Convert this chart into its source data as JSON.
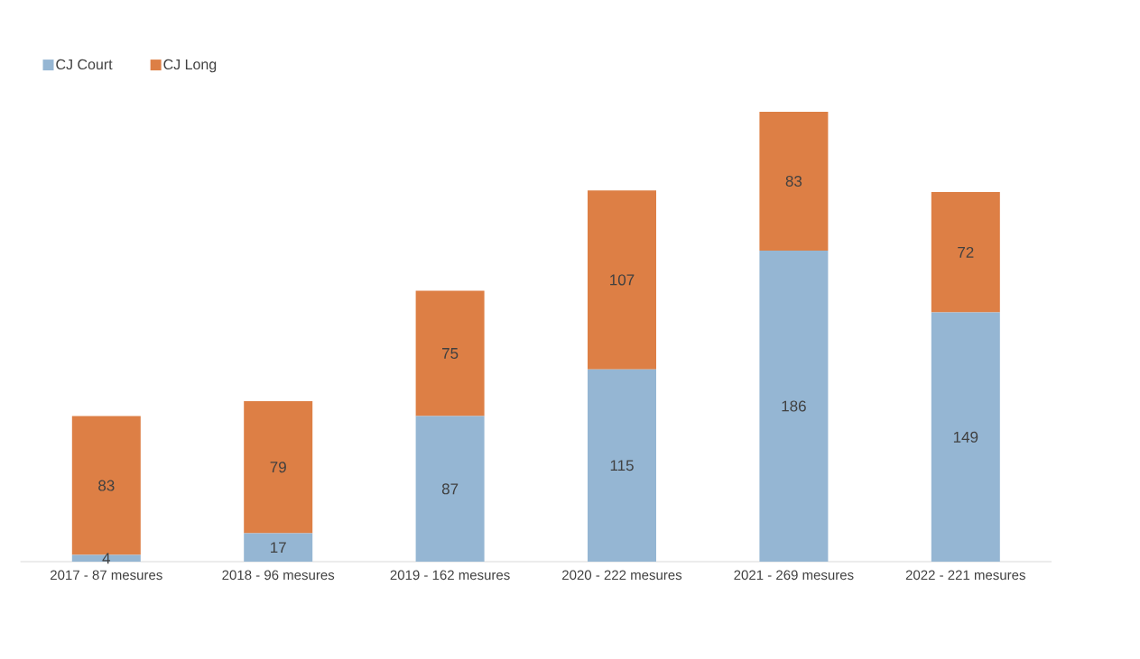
{
  "chart_data": {
    "type": "bar",
    "stacked": true,
    "data_labels": true,
    "legend": "top left",
    "categories": [
      "2017 - 87 mesures",
      "2018 - 96 mesures",
      "2019 - 162 mesures",
      "2020 - 222 mesures",
      "2021 - 269 mesures",
      "2022 - 221 mesures"
    ],
    "series": [
      {
        "name": "CJ Court",
        "color": "#95b6d3",
        "values": [
          4,
          17,
          87,
          115,
          186,
          149
        ]
      },
      {
        "name": "CJ Long",
        "color": "#dd7f45",
        "values": [
          83,
          79,
          75,
          107,
          83,
          72
        ]
      }
    ]
  }
}
